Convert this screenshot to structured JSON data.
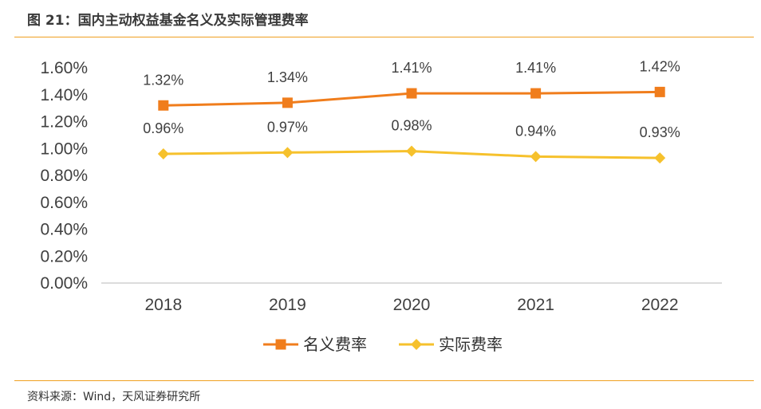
{
  "figure_title": "图 21：国内主动权益基金名义及实际管理费率",
  "source": "资料来源：Wind，天风证券研究所",
  "chart_data": {
    "type": "line",
    "categories": [
      "2018",
      "2019",
      "2020",
      "2021",
      "2022"
    ],
    "ylim": [
      0,
      1.6
    ],
    "y_ticks": [
      "0.00%",
      "0.20%",
      "0.40%",
      "0.60%",
      "0.80%",
      "1.00%",
      "1.20%",
      "1.40%",
      "1.60%"
    ],
    "series": [
      {
        "name": "名义费率",
        "values": [
          1.32,
          1.34,
          1.41,
          1.41,
          1.42
        ],
        "labels": [
          "1.32%",
          "1.34%",
          "1.41%",
          "1.41%",
          "1.42%"
        ],
        "color": "#f07d1c",
        "marker": "square"
      },
      {
        "name": "实际费率",
        "values": [
          0.96,
          0.97,
          0.98,
          0.94,
          0.93
        ],
        "labels": [
          "0.96%",
          "0.97%",
          "0.98%",
          "0.94%",
          "0.93%"
        ],
        "color": "#f6c12c",
        "marker": "diamond"
      }
    ],
    "grid": false,
    "legend": "bottom"
  }
}
